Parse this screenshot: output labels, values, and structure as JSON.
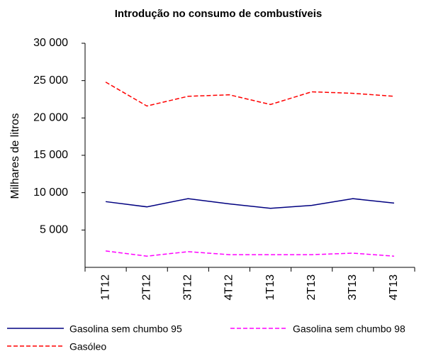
{
  "chart_data": {
    "type": "line",
    "title": "Introdução no consumo de combustíveis",
    "y_label": "Milhares de litros",
    "categories": [
      "1T12",
      "2T12",
      "3T12",
      "4T12",
      "1T13",
      "2T13",
      "3T13",
      "4T13"
    ],
    "series": [
      {
        "name": "Gasolina sem chumbo 95",
        "color": "#000080",
        "style": "solid",
        "values": [
          8800,
          8100,
          9200,
          8500,
          7900,
          8300,
          9200,
          8600
        ]
      },
      {
        "name": "Gasolina sem chumbo 98",
        "color": "#ff00ff",
        "style": "dashed",
        "values": [
          2200,
          1500,
          2100,
          1700,
          1700,
          1700,
          1900,
          1500
        ]
      },
      {
        "name": "Gasóleo",
        "color": "#ff0000",
        "style": "dashed",
        "values": [
          24800,
          21600,
          22900,
          23100,
          21800,
          23500,
          23300,
          22900
        ]
      }
    ],
    "ylim": [
      0,
      30000
    ],
    "yticks": [
      {
        "value": 5000,
        "label": "5 000"
      },
      {
        "value": 10000,
        "label": "10 000"
      },
      {
        "value": 15000,
        "label": "15 000"
      },
      {
        "value": 20000,
        "label": "20 000"
      },
      {
        "value": 25000,
        "label": "25 000"
      },
      {
        "value": 30000,
        "label": "30 000"
      }
    ],
    "grid": false
  }
}
